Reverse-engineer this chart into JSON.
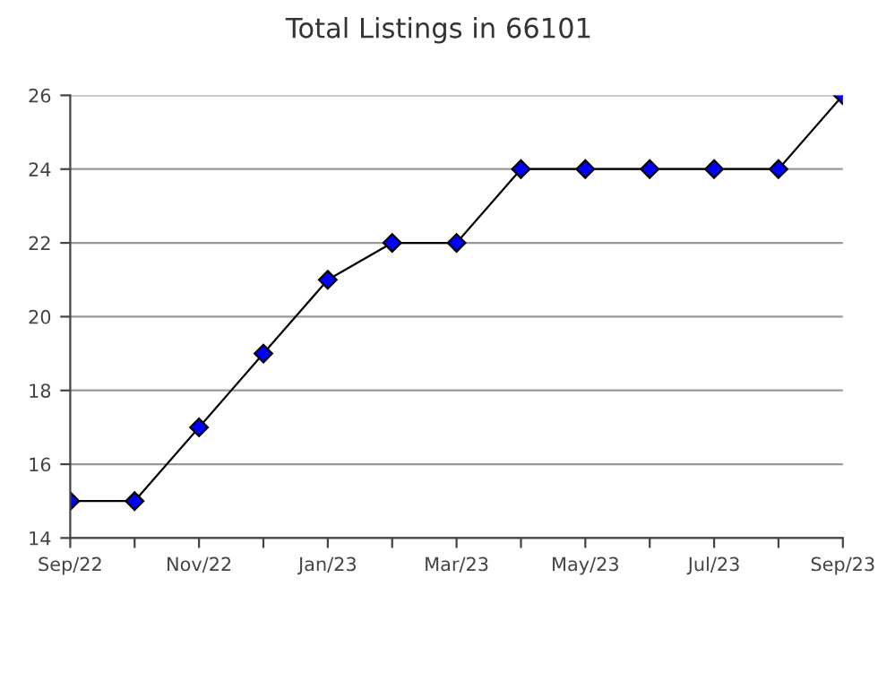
{
  "chart_data": {
    "type": "line",
    "title": "Total Listings in 66101",
    "categories": [
      "Sep/22",
      null,
      "Nov/22",
      null,
      "Jan/23",
      null,
      "Mar/23",
      null,
      "May/23",
      null,
      "Jul/23",
      null,
      "Sep/23"
    ],
    "series": [
      {
        "color": "#0000ff",
        "values": [
          15,
          15,
          17,
          19,
          21,
          22,
          22,
          24,
          24,
          24,
          24,
          24,
          26
        ]
      }
    ],
    "ylim": [
      14,
      26
    ],
    "yticks": [
      14,
      16,
      18,
      20,
      22,
      24,
      26
    ],
    "grid": "y",
    "marker": "diamond",
    "line_style": "solid",
    "legend": false
  }
}
